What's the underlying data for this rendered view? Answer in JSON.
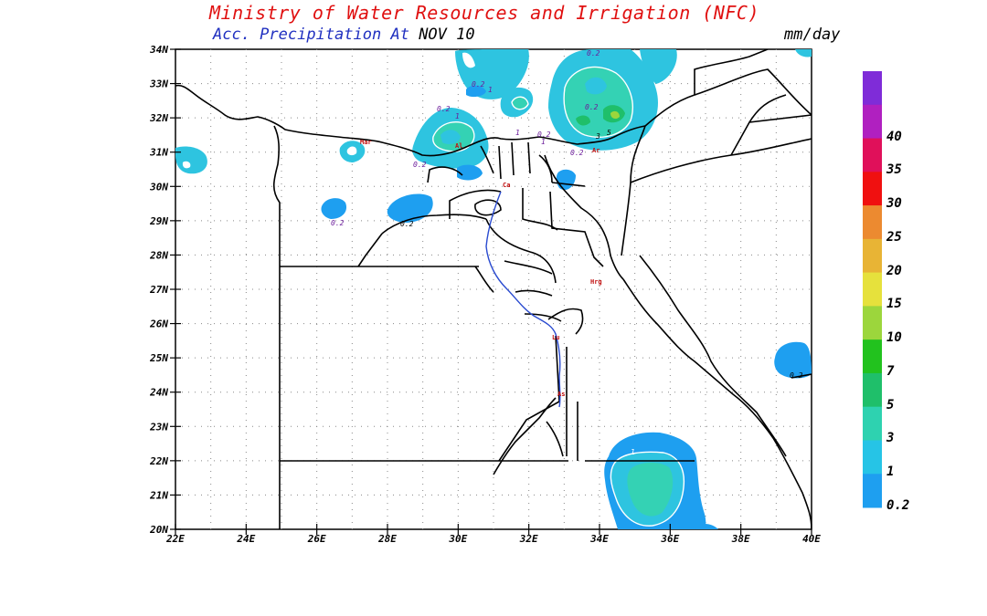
{
  "header": {
    "title": "Ministry of Water Resources and Irrigation (NFC)",
    "subtitle_prefix": "Acc. Precipitation  At",
    "date": "NOV 10",
    "units": "mm/day"
  },
  "axes": {
    "lat_labels": [
      "34N",
      "33N",
      "32N",
      "31N",
      "30N",
      "29N",
      "28N",
      "27N",
      "26N",
      "25N",
      "24N",
      "23N",
      "22N",
      "21N",
      "20N"
    ],
    "lon_labels": [
      "22E",
      "24E",
      "26E",
      "28E",
      "30E",
      "32E",
      "34E",
      "36E",
      "38E",
      "40E"
    ],
    "lat_range": [
      20,
      34
    ],
    "lon_range": [
      22,
      40
    ],
    "grid": true
  },
  "colorbar": {
    "levels": [
      "0.2",
      "1",
      "3",
      "5",
      "7",
      "10",
      "15",
      "20",
      "25",
      "30",
      "35",
      "40"
    ],
    "colors": [
      "#1e9ff0",
      "#26c4e6",
      "#2ed2b0",
      "#1fbf6a",
      "#22c21e",
      "#9cd63c",
      "#e6e13c",
      "#e8b435",
      "#ec8a30",
      "#f01010",
      "#e0105a",
      "#b020c0",
      "#7f2cd8"
    ]
  },
  "contour_labels": [
    "0.2",
    "1",
    "0.2",
    "1",
    "0.2",
    "0.2",
    "1",
    "0.2",
    "0.2",
    "0.2",
    "1",
    "3",
    "5",
    "0.2",
    "0.2",
    "0.2",
    "1"
  ],
  "city_labels": [
    "Mar",
    "Al",
    "Ca",
    "Hrg",
    "Lu",
    "As",
    "Ar"
  ]
}
